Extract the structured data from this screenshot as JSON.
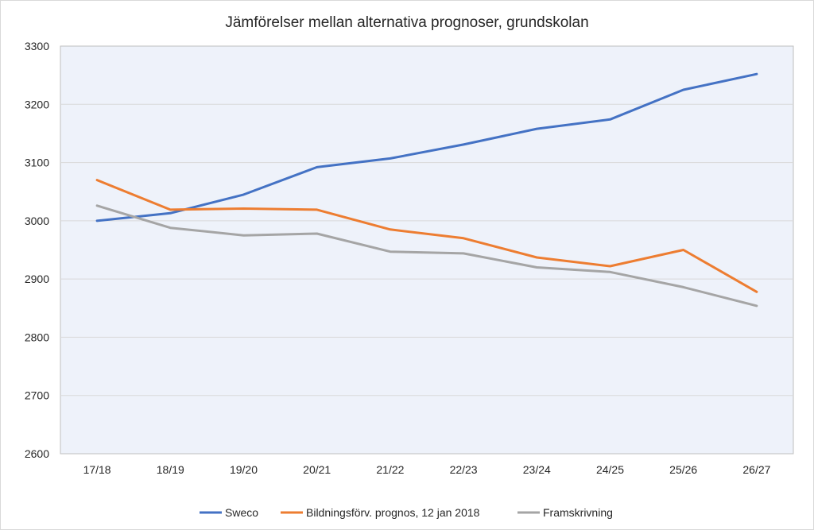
{
  "chart_data": {
    "type": "line",
    "title": "Jämförelser mellan alternativa prognoser, grundskolan",
    "xlabel": "",
    "ylabel": "",
    "categories": [
      "17/18",
      "18/19",
      "19/20",
      "20/21",
      "21/22",
      "22/23",
      "23/24",
      "24/25",
      "25/26",
      "26/27"
    ],
    "ylim": [
      2600,
      3300
    ],
    "yticks": [
      2600,
      2700,
      2800,
      2900,
      3000,
      3100,
      3200,
      3300
    ],
    "grid": true,
    "legend": "bottom",
    "plot_background": "#eef2fa",
    "series": [
      {
        "name": "Sweco",
        "color": "#4472c4",
        "values": [
          3000,
          3013,
          3045,
          3092,
          3107,
          3131,
          3158,
          3174,
          3225,
          3252
        ]
      },
      {
        "name": "Bildningsförv. prognos, 12 jan 2018",
        "color": "#ed7d31",
        "values": [
          3070,
          3019,
          3021,
          3019,
          2985,
          2970,
          2937,
          2922,
          2950,
          2878
        ]
      },
      {
        "name": "Framskrivning",
        "color": "#a5a5a5",
        "values": [
          3026,
          2988,
          2975,
          2978,
          2947,
          2944,
          2920,
          2912,
          2886,
          2854
        ]
      }
    ]
  }
}
